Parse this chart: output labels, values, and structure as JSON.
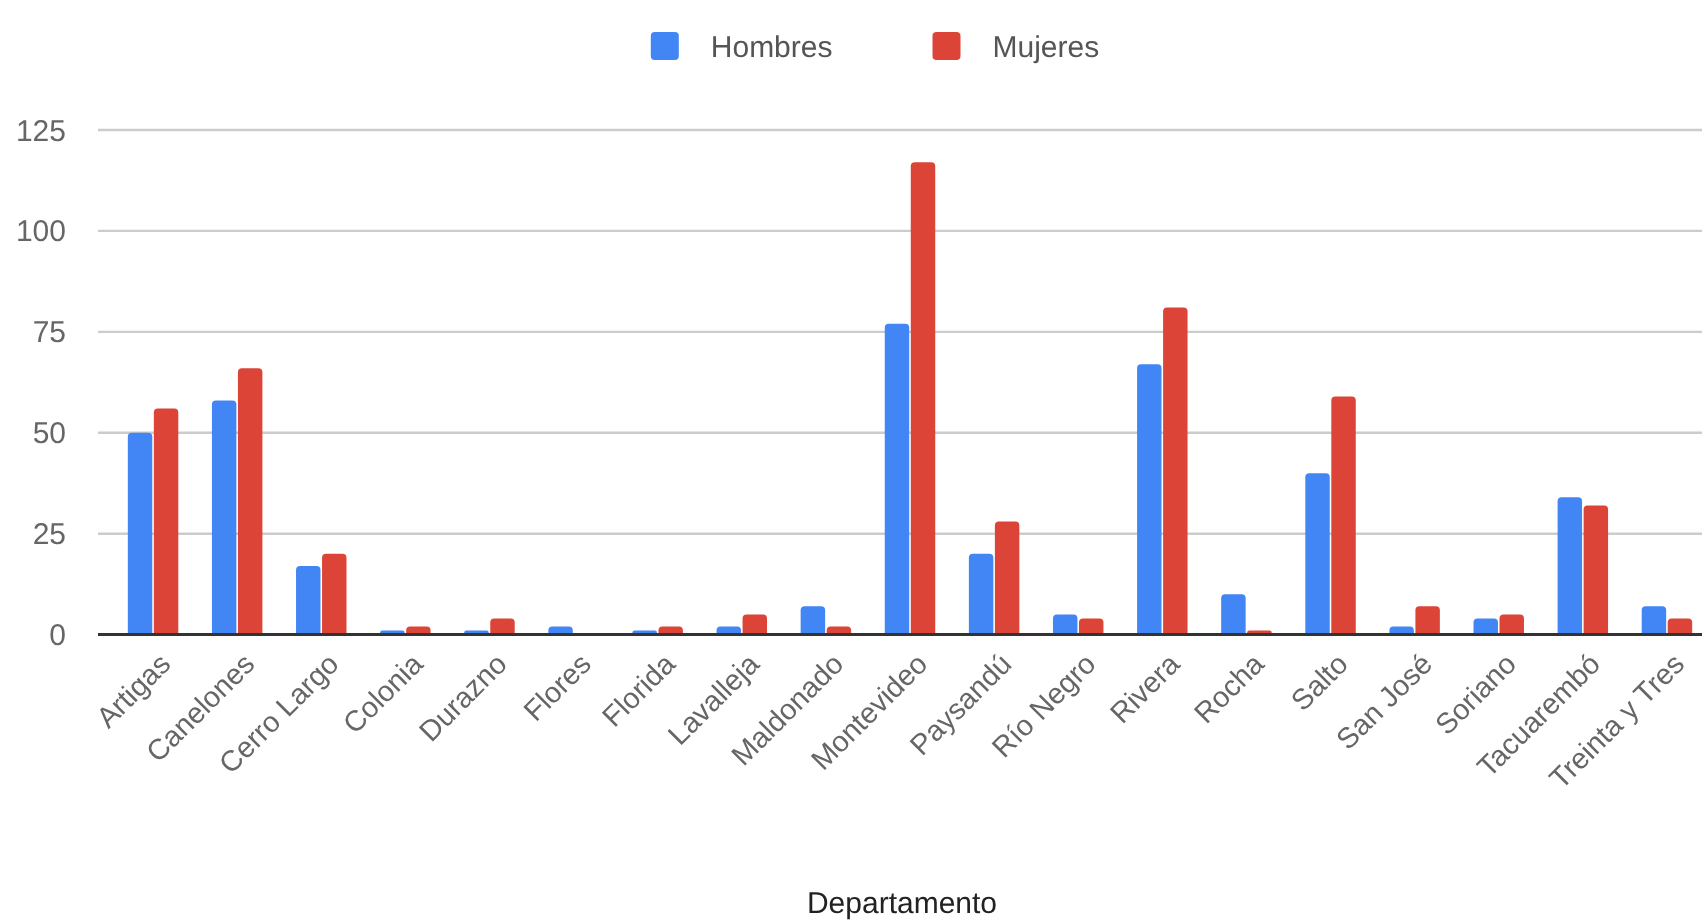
{
  "chart_data": {
    "type": "bar",
    "xlabel": "Departamento",
    "categories": [
      "Artigas",
      "Canelones",
      "Cerro Largo",
      "Colonia",
      "Durazno",
      "Flores",
      "Florida",
      "Lavalleja",
      "Maldonado",
      "Montevideo",
      "Paysandú",
      "Río Negro",
      "Rivera",
      "Rocha",
      "Salto",
      "San José",
      "Soriano",
      "Tacuarembó",
      "Treinta y Tres"
    ],
    "series": [
      {
        "name": "Hombres",
        "color": "#4285f4",
        "values": [
          50,
          58,
          17,
          1,
          1,
          2,
          1,
          2,
          7,
          77,
          20,
          5,
          67,
          10,
          40,
          2,
          4,
          34,
          7
        ]
      },
      {
        "name": "Mujeres",
        "color": "#db4437",
        "values": [
          56,
          66,
          20,
          2,
          4,
          0,
          2,
          5,
          2,
          117,
          28,
          4,
          81,
          1,
          59,
          7,
          5,
          32,
          4
        ]
      }
    ],
    "ylim": [
      0,
      125
    ],
    "yticks": [
      0,
      25,
      50,
      75,
      100,
      125
    ],
    "grid": true,
    "legend": "top"
  }
}
